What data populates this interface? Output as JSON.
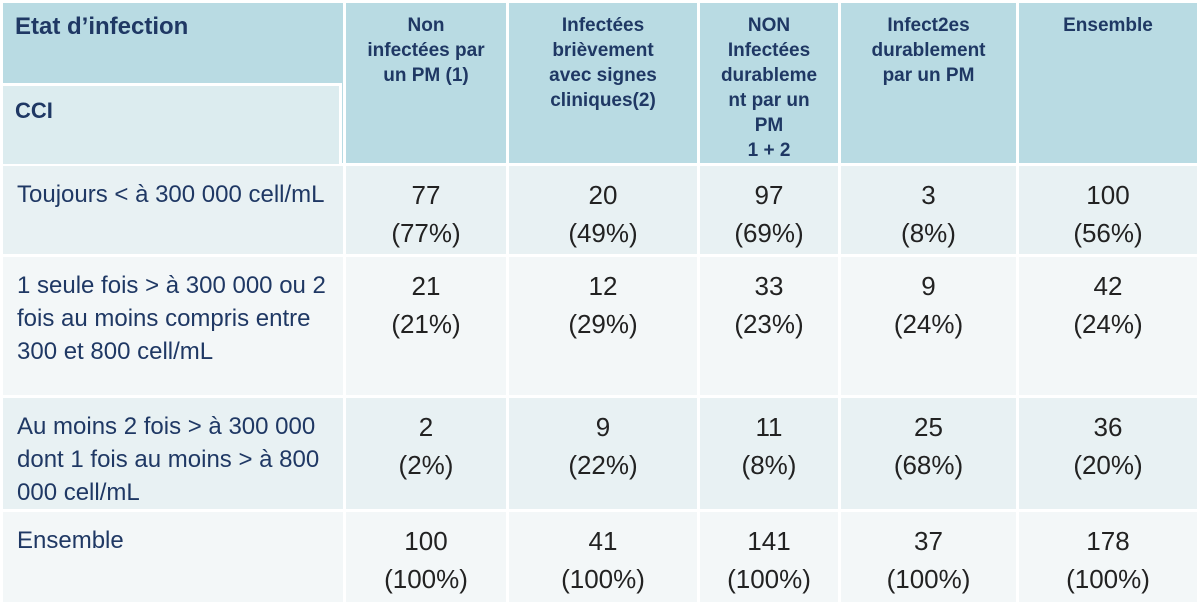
{
  "header": {
    "corner_title": "Etat d’infection",
    "corner_subtitle": "CCI",
    "columns": [
      {
        "lines": [
          "Non",
          "infectées par",
          "un PM (1)"
        ]
      },
      {
        "lines": [
          "Infectées",
          "brièvement",
          "avec signes",
          "cliniques(2)"
        ]
      },
      {
        "lines": [
          "NON",
          "Infectées",
          "durableme",
          "nt par un",
          "PM",
          "1 + 2"
        ]
      },
      {
        "lines": [
          "Infect2es",
          "durablement",
          "par un PM"
        ]
      },
      {
        "lines": [
          "Ensemble"
        ]
      }
    ]
  },
  "rows": [
    {
      "label": "Toujours < à 300 000 cell/mL",
      "cells": [
        {
          "count": "77",
          "pct": "(77%)"
        },
        {
          "count": "20",
          "pct": "(49%)"
        },
        {
          "count": "97",
          "pct": "(69%)"
        },
        {
          "count": "3",
          "pct": "(8%)"
        },
        {
          "count": "100",
          "pct": "(56%)"
        }
      ]
    },
    {
      "label": "1 seule fois > à 300 000 ou 2 fois au moins compris entre 300 et 800 cell/mL",
      "cells": [
        {
          "count": "21",
          "pct": "(21%)"
        },
        {
          "count": "12",
          "pct": "(29%)"
        },
        {
          "count": "33",
          "pct": "(23%)"
        },
        {
          "count": "9",
          "pct": "(24%)"
        },
        {
          "count": "42",
          "pct": "(24%)"
        }
      ]
    },
    {
      "label": "Au moins 2 fois > à  300 000 dont 1 fois au moins > à 800 000 cell/mL",
      "cells": [
        {
          "count": "2",
          "pct": "(2%)"
        },
        {
          "count": "9",
          "pct": "(22%)"
        },
        {
          "count": "11",
          "pct": "(8%)"
        },
        {
          "count": "25",
          "pct": "(68%)"
        },
        {
          "count": "36",
          "pct": "(20%)"
        }
      ]
    },
    {
      "label": "Ensemble",
      "cells": [
        {
          "count": "100",
          "pct": "(100%)"
        },
        {
          "count": "41",
          "pct": "(100%)"
        },
        {
          "count": "141",
          "pct": "(100%)"
        },
        {
          "count": "37",
          "pct": "(100%)"
        },
        {
          "count": "178",
          "pct": "(100%)"
        }
      ]
    }
  ],
  "colors": {
    "header_bg": "#b9dbe3",
    "header_text": "#1f3864",
    "row_odd_bg": "#e8f1f3",
    "row_even_bg": "#f3f7f8"
  }
}
